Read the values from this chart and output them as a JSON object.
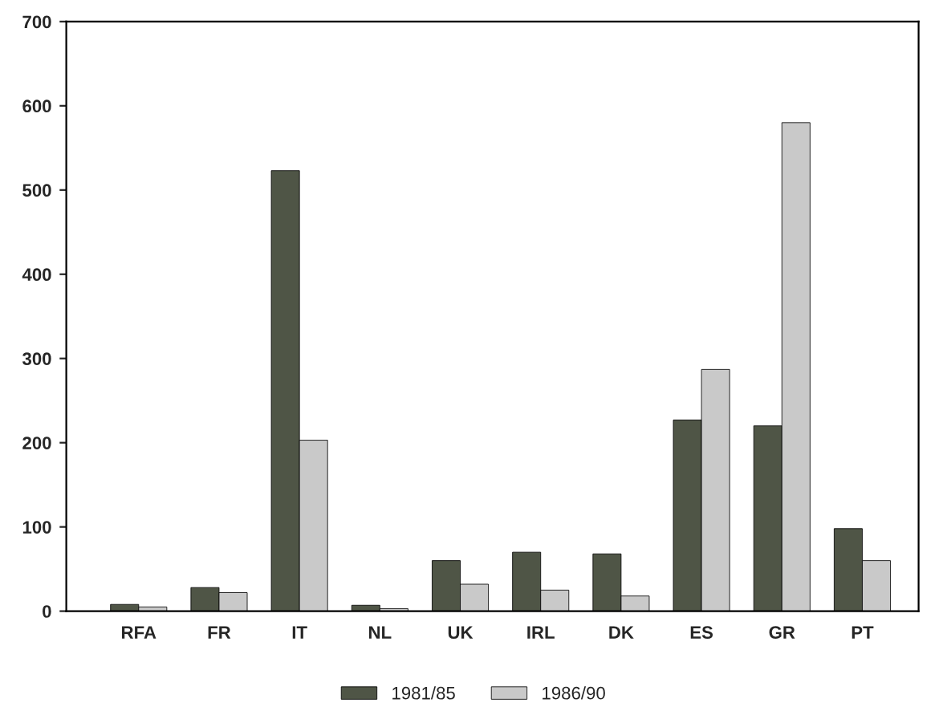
{
  "chart_data": {
    "type": "bar",
    "categories": [
      "RFA",
      "FR",
      "IT",
      "NL",
      "UK",
      "IRL",
      "DK",
      "ES",
      "GR",
      "PT"
    ],
    "series": [
      {
        "name": "1981/85",
        "color": "#4f5546",
        "values": [
          8,
          28,
          523,
          7,
          60,
          70,
          68,
          227,
          220,
          98
        ]
      },
      {
        "name": "1986/90",
        "color": "#c9c9c9",
        "values": [
          5,
          22,
          203,
          3,
          32,
          25,
          18,
          287,
          580,
          60
        ]
      }
    ],
    "ylim": [
      0,
      700
    ],
    "yticks": [
      0,
      100,
      200,
      300,
      400,
      500,
      600,
      700
    ],
    "grid": false,
    "legend": "bottom"
  }
}
